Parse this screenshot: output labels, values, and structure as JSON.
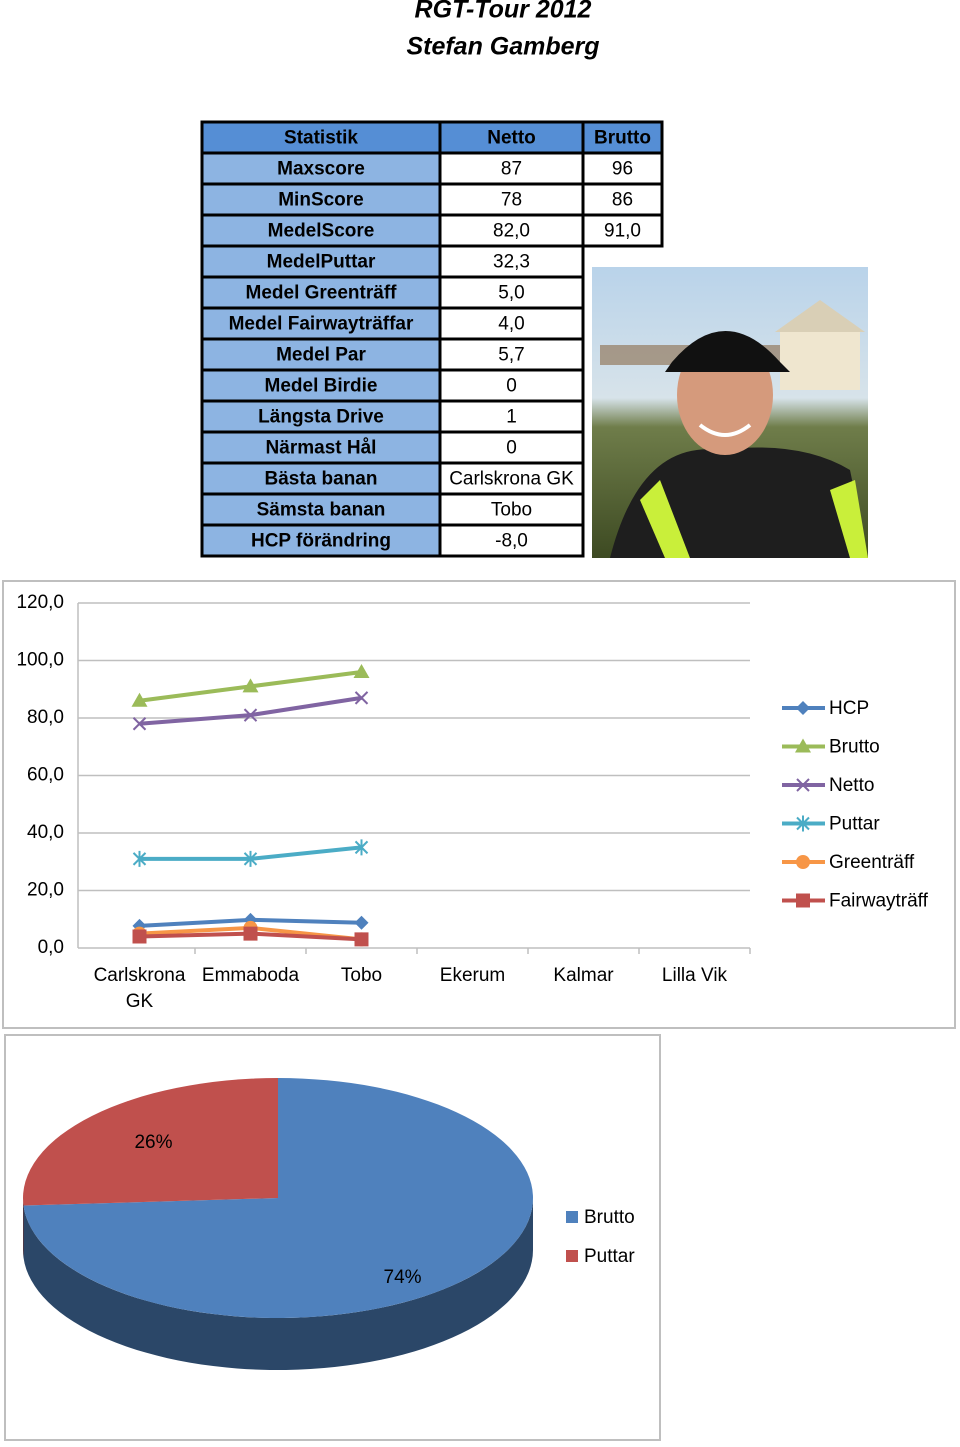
{
  "header": {
    "title": "RGT-Tour 2012",
    "subtitle": "Stefan Gamberg"
  },
  "table": {
    "header": [
      "Statistik",
      "Netto",
      "Brutto"
    ],
    "rows": [
      [
        "Maxscore",
        "87",
        "96"
      ],
      [
        "MinScore",
        "78",
        "86"
      ],
      [
        "MedelScore",
        "82,0",
        "91,0"
      ],
      [
        "MedelPuttar",
        "32,3"
      ],
      [
        "Medel Greenträff",
        "5,0"
      ],
      [
        "Medel Fairwayträffar",
        "4,0"
      ],
      [
        "Medel Par",
        "5,7"
      ],
      [
        "Medel Birdie",
        "0"
      ],
      [
        "Längsta Drive",
        "1"
      ],
      [
        "Närmast Hål",
        "0"
      ],
      [
        "Bästa banan",
        "Carlskrona GK"
      ],
      [
        "Sämsta banan",
        "Tobo"
      ],
      [
        "HCP förändring",
        "-8,0"
      ]
    ]
  },
  "chart_data": [
    {
      "type": "line",
      "categories": [
        "Carlskrona GK",
        "Emmaboda",
        "Tobo",
        "Ekerum",
        "Kalmar",
        "Lilla Vik"
      ],
      "series": [
        {
          "name": "HCP",
          "color": "#4f81bd",
          "marker": "diamond",
          "values": [
            7.7,
            9.8,
            8.8,
            null,
            null,
            null
          ]
        },
        {
          "name": "Brutto",
          "color": "#9bbb59",
          "marker": "triangle",
          "values": [
            86,
            91,
            96,
            null,
            null,
            null
          ]
        },
        {
          "name": "Netto",
          "color": "#8064a2",
          "marker": "x",
          "values": [
            78,
            81,
            87,
            null,
            null,
            null
          ]
        },
        {
          "name": "Puttar",
          "color": "#4bacc6",
          "marker": "star",
          "values": [
            31,
            31,
            35,
            null,
            null,
            null
          ]
        },
        {
          "name": "Greenträff",
          "color": "#f79646",
          "marker": "circle",
          "values": [
            5,
            7,
            3,
            null,
            null,
            null
          ]
        },
        {
          "name": "Fairwayträff",
          "color": "#c0504d",
          "marker": "square",
          "values": [
            4,
            5,
            3,
            null,
            null,
            null
          ]
        }
      ],
      "ylim": [
        0,
        120
      ],
      "yticks": [
        {
          "value": 0,
          "label": "0,0"
        },
        {
          "value": 20,
          "label": "20,0"
        },
        {
          "value": 40,
          "label": "40,0"
        },
        {
          "value": 60,
          "label": "60,0"
        },
        {
          "value": 80,
          "label": "80,0"
        },
        {
          "value": 100,
          "label": "100,0"
        },
        {
          "value": 120,
          "label": "120,0"
        }
      ],
      "grid": true,
      "legend": "right"
    },
    {
      "type": "pie",
      "categories": [
        "Brutto",
        "Puttar"
      ],
      "values": [
        74,
        26
      ],
      "value_labels": [
        "74%",
        "26%"
      ],
      "colors": [
        "#4f81bd",
        "#c0504d"
      ],
      "legend": "right"
    }
  ]
}
